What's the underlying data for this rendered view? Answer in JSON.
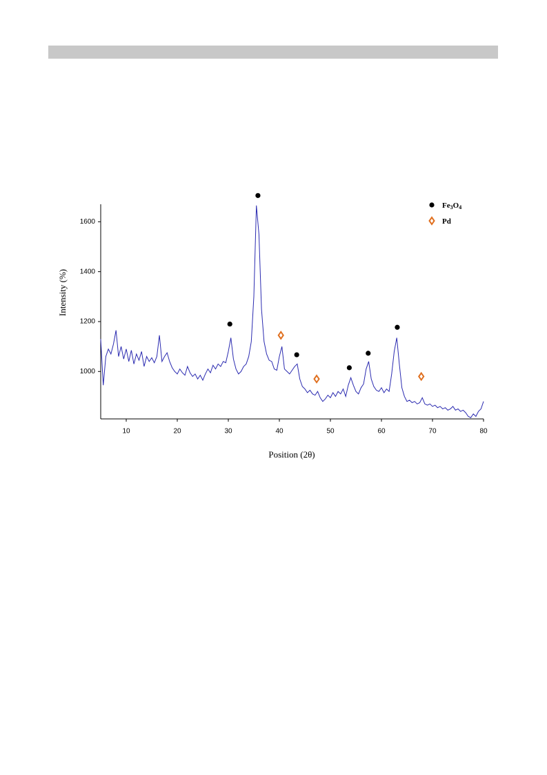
{
  "chart_data": {
    "type": "line",
    "x_label": "Position (2θ)",
    "y_label": "Intensity (%)",
    "color": "#2a2ab0",
    "xlim": [
      5,
      80
    ],
    "xticks": [
      10,
      20,
      30,
      40,
      50,
      60,
      70,
      80
    ],
    "ylim": [
      810,
      1670
    ],
    "yticks": [
      1000,
      1200,
      1400,
      1600
    ],
    "grid": false,
    "legend": "upper right",
    "x": [
      5,
      5.5,
      6,
      6.5,
      7,
      7.5,
      8,
      8.5,
      9,
      9.5,
      10,
      10.5,
      11,
      11.5,
      12,
      12.5,
      13,
      13.5,
      14,
      14.5,
      15,
      15.5,
      16,
      16.5,
      17,
      17.5,
      18,
      18.5,
      19,
      19.5,
      20,
      20.5,
      21,
      21.5,
      22,
      22.5,
      23,
      23.5,
      24,
      24.5,
      25,
      25.5,
      26,
      26.5,
      27,
      27.5,
      28,
      28.5,
      29,
      29.5,
      30,
      30.5,
      31,
      31.5,
      32,
      32.5,
      33,
      33.5,
      34,
      34.5,
      35,
      35.5,
      36,
      36.5,
      37,
      37.5,
      38,
      38.5,
      39,
      39.5,
      40,
      40.5,
      41,
      41.5,
      42,
      42.5,
      43,
      43.5,
      44,
      44.5,
      45,
      45.5,
      46,
      46.5,
      47,
      47.5,
      48,
      48.5,
      49,
      49.5,
      50,
      50.5,
      51,
      51.5,
      52,
      52.5,
      53,
      53.5,
      54,
      54.5,
      55,
      55.5,
      56,
      56.5,
      57,
      57.5,
      58,
      58.5,
      59,
      59.5,
      60,
      60.5,
      61,
      61.5,
      62,
      62.5,
      63,
      63.5,
      64,
      64.5,
      65,
      65.5,
      66,
      66.5,
      67,
      67.5,
      68,
      68.5,
      69,
      69.5,
      70,
      70.5,
      71,
      71.5,
      72,
      72.5,
      73,
      73.5,
      74,
      74.5,
      75,
      75.5,
      76,
      76.5,
      77,
      77.5,
      78,
      78.5,
      79,
      79.5,
      80
    ],
    "values": [
      1130,
      945,
      1060,
      1090,
      1070,
      1110,
      1165,
      1060,
      1100,
      1050,
      1090,
      1040,
      1085,
      1030,
      1070,
      1045,
      1080,
      1020,
      1060,
      1040,
      1055,
      1035,
      1060,
      1145,
      1040,
      1060,
      1075,
      1040,
      1015,
      1000,
      990,
      1010,
      995,
      985,
      1020,
      995,
      980,
      990,
      970,
      985,
      965,
      990,
      1010,
      995,
      1025,
      1010,
      1030,
      1020,
      1040,
      1035,
      1080,
      1135,
      1050,
      1010,
      990,
      1000,
      1020,
      1030,
      1060,
      1120,
      1300,
      1665,
      1550,
      1250,
      1120,
      1070,
      1045,
      1040,
      1010,
      1005,
      1060,
      1100,
      1010,
      1000,
      990,
      1005,
      1020,
      1030,
      970,
      940,
      930,
      915,
      925,
      910,
      905,
      920,
      895,
      880,
      890,
      905,
      895,
      915,
      900,
      920,
      910,
      930,
      900,
      945,
      975,
      945,
      920,
      910,
      935,
      950,
      1010,
      1040,
      970,
      940,
      925,
      920,
      935,
      915,
      930,
      920,
      990,
      1080,
      1135,
      1030,
      935,
      900,
      880,
      885,
      875,
      880,
      870,
      875,
      895,
      870,
      865,
      870,
      860,
      865,
      855,
      860,
      850,
      855,
      845,
      850,
      860,
      845,
      850,
      840,
      845,
      835,
      820,
      815,
      830,
      820,
      840,
      850,
      880
    ],
    "markers": [
      {
        "name": "Fe3O4",
        "marker": "circle",
        "color": "#000000",
        "x": [
          30.3,
          35.8,
          43.4,
          53.7,
          57.4,
          63.1
        ],
        "values": [
          1190,
          1705,
          1067,
          1015,
          1073,
          1177
        ]
      },
      {
        "name": "Pd",
        "marker": "diamond",
        "color": "#e07020",
        "x": [
          40.3,
          47.3,
          67.8
        ],
        "values": [
          1145,
          970,
          980
        ]
      }
    ]
  }
}
